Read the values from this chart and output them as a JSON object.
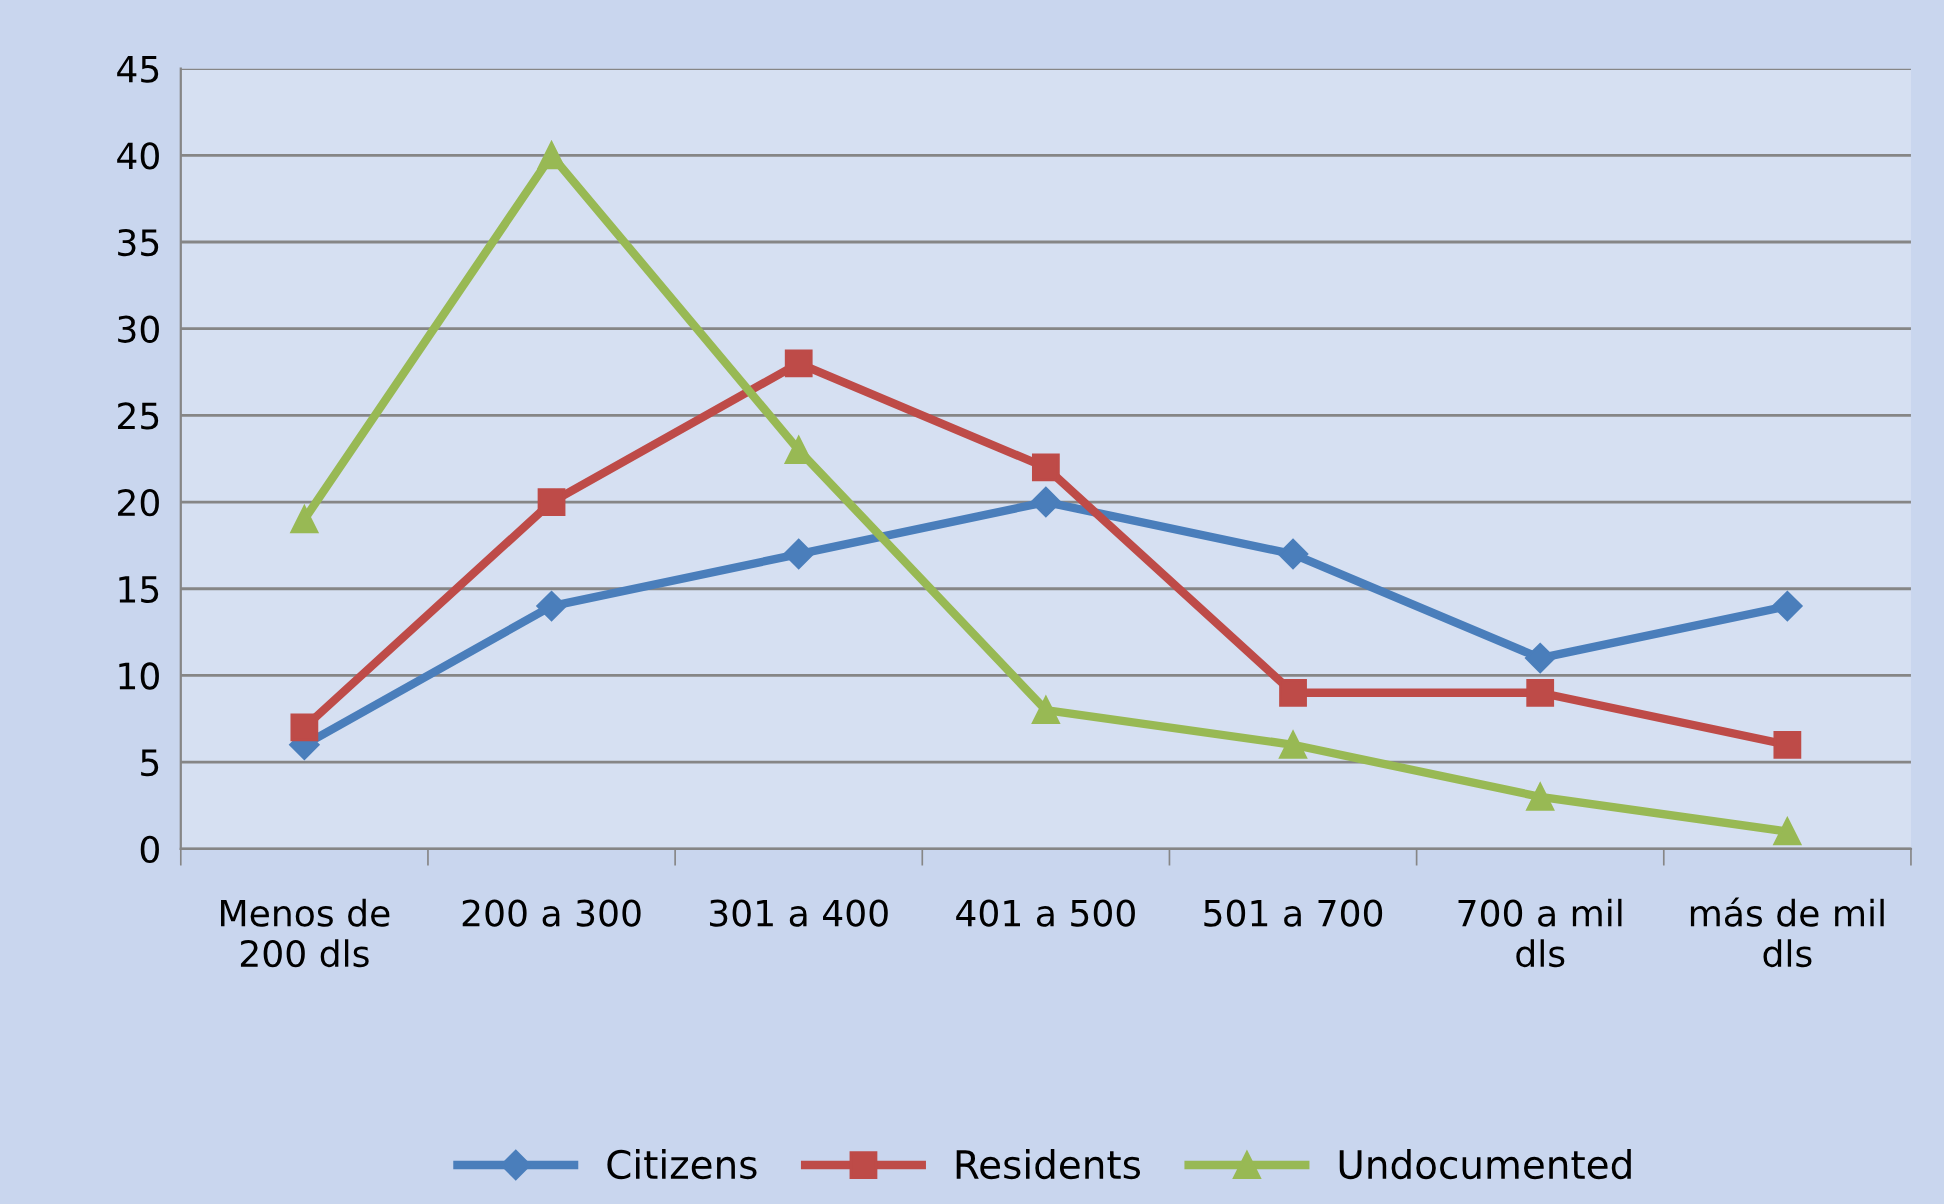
{
  "chart_data": {
    "type": "line",
    "categories": [
      "Menos de\n200 dls",
      "200 a 300",
      "301 a 400",
      "401 a 500",
      "501 a 700",
      "700 a mil\ndls",
      "más de mil\ndls"
    ],
    "series": [
      {
        "name": "Citizens",
        "color": "#4a7ebb",
        "marker": "diamond",
        "values": [
          6,
          14,
          17,
          20,
          17,
          11,
          14
        ]
      },
      {
        "name": "Residents",
        "color": "#be4b48",
        "marker": "square",
        "values": [
          7,
          20,
          28,
          22,
          9,
          9,
          6
        ]
      },
      {
        "name": "Undocumented",
        "color": "#98b954",
        "marker": "triangle",
        "values": [
          19,
          40,
          23,
          8,
          6,
          3,
          1
        ]
      }
    ],
    "ylim": [
      0,
      45
    ],
    "yticks": [
      0,
      5,
      10,
      15,
      20,
      25,
      30,
      35,
      40,
      45
    ],
    "grid": "y",
    "legend": "bottom"
  }
}
